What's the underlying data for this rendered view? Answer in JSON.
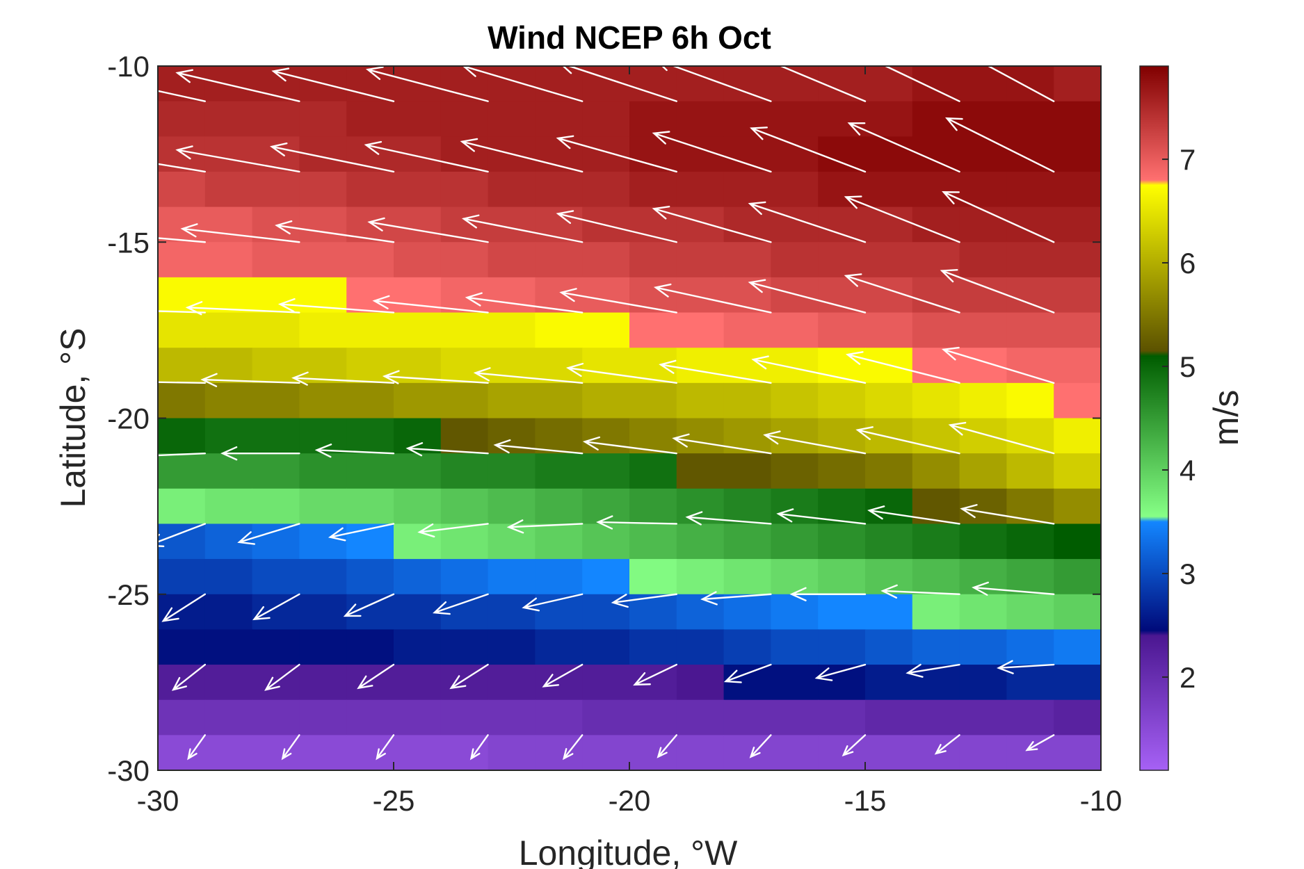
{
  "chart_data": {
    "type": "heatmap",
    "subtype": "wind speed field with wind vectors",
    "title": "Wind NCEP 6h Oct",
    "xlabel": "Longitude, °W",
    "ylabel": "Latitude, °S",
    "xlim": [
      -30,
      -10
    ],
    "ylim": [
      -30,
      -10
    ],
    "xticks": [
      "-30",
      "-25",
      "-20",
      "-15",
      "-10"
    ],
    "yticks": [
      "-10",
      "-15",
      "-20",
      "-25",
      "-30"
    ],
    "grid": false,
    "colorbar": {
      "label": "m/s",
      "range": [
        1.1,
        7.9
      ],
      "ticks": [
        "2",
        "3",
        "4",
        "5",
        "6",
        "7"
      ],
      "tick_values": [
        2,
        3,
        4,
        5,
        6,
        7
      ],
      "stops": [
        {
          "v": 1.1,
          "c": "#a661f5"
        },
        {
          "v": 2.4,
          "c": "#4b1791"
        },
        {
          "v": 2.45,
          "c": "#000a7a"
        },
        {
          "v": 3.5,
          "c": "#1386ff"
        },
        {
          "v": 3.55,
          "c": "#86ff86"
        },
        {
          "v": 5.1,
          "c": "#005c00"
        },
        {
          "v": 5.15,
          "c": "#5c5200"
        },
        {
          "v": 6.75,
          "c": "#ffff00"
        },
        {
          "v": 6.8,
          "c": "#ff7070"
        },
        {
          "v": 7.9,
          "c": "#800000"
        }
      ]
    },
    "grid_info": {
      "lon_start": -30,
      "lon_step": 1,
      "lat_start": -10,
      "lat_step": -1,
      "n_lon": 20,
      "n_lat": 20
    },
    "speed": [
      [
        7.6,
        7.6,
        7.6,
        7.6,
        7.6,
        7.6,
        7.6,
        7.6,
        7.6,
        7.6,
        7.6,
        7.6,
        7.6,
        7.6,
        7.6,
        7.6,
        7.7,
        7.7,
        7.7,
        7.6
      ],
      [
        7.5,
        7.5,
        7.5,
        7.5,
        7.6,
        7.6,
        7.6,
        7.6,
        7.6,
        7.6,
        7.7,
        7.7,
        7.7,
        7.7,
        7.7,
        7.7,
        7.8,
        7.8,
        7.8,
        7.8
      ],
      [
        7.4,
        7.4,
        7.4,
        7.5,
        7.5,
        7.5,
        7.6,
        7.6,
        7.6,
        7.6,
        7.7,
        7.7,
        7.7,
        7.7,
        7.8,
        7.8,
        7.8,
        7.8,
        7.8,
        7.8
      ],
      [
        7.2,
        7.3,
        7.3,
        7.3,
        7.4,
        7.4,
        7.4,
        7.5,
        7.5,
        7.5,
        7.6,
        7.6,
        7.6,
        7.6,
        7.7,
        7.7,
        7.7,
        7.7,
        7.7,
        7.7
      ],
      [
        7.0,
        7.0,
        7.1,
        7.1,
        7.2,
        7.2,
        7.3,
        7.3,
        7.3,
        7.4,
        7.4,
        7.4,
        7.5,
        7.5,
        7.5,
        7.5,
        7.6,
        7.6,
        7.6,
        7.6
      ],
      [
        6.9,
        6.9,
        7.0,
        7.0,
        7.0,
        7.1,
        7.1,
        7.2,
        7.2,
        7.2,
        7.3,
        7.3,
        7.3,
        7.4,
        7.4,
        7.4,
        7.4,
        7.5,
        7.5,
        7.5
      ],
      [
        6.7,
        6.7,
        6.7,
        6.7,
        6.8,
        6.8,
        6.9,
        6.9,
        7.0,
        7.0,
        7.1,
        7.1,
        7.1,
        7.2,
        7.2,
        7.2,
        7.3,
        7.3,
        7.3,
        7.3
      ],
      [
        6.5,
        6.5,
        6.5,
        6.6,
        6.6,
        6.6,
        6.6,
        6.6,
        6.7,
        6.7,
        6.8,
        6.8,
        6.9,
        6.9,
        7.0,
        7.0,
        7.1,
        7.1,
        7.1,
        7.1
      ],
      [
        6.1,
        6.1,
        6.2,
        6.2,
        6.3,
        6.3,
        6.4,
        6.4,
        6.4,
        6.5,
        6.5,
        6.6,
        6.6,
        6.6,
        6.7,
        6.7,
        6.8,
        6.8,
        6.9,
        6.9
      ],
      [
        5.5,
        5.6,
        5.6,
        5.7,
        5.7,
        5.8,
        5.8,
        5.9,
        5.9,
        6.0,
        6.0,
        6.1,
        6.1,
        6.2,
        6.3,
        6.4,
        6.5,
        6.6,
        6.7,
        6.8
      ],
      [
        5.0,
        4.9,
        4.9,
        4.9,
        4.9,
        5.0,
        5.2,
        5.3,
        5.4,
        5.5,
        5.6,
        5.7,
        5.8,
        5.9,
        6.0,
        6.1,
        6.2,
        6.3,
        6.4,
        6.6
      ],
      [
        4.5,
        4.5,
        4.5,
        4.6,
        4.6,
        4.6,
        4.7,
        4.7,
        4.8,
        4.8,
        4.9,
        5.2,
        5.2,
        5.3,
        5.4,
        5.5,
        5.7,
        5.9,
        6.1,
        6.3
      ],
      [
        3.7,
        3.8,
        3.8,
        3.9,
        3.9,
        4.0,
        4.1,
        4.2,
        4.3,
        4.4,
        4.5,
        4.6,
        4.7,
        4.8,
        4.9,
        5.0,
        5.2,
        5.3,
        5.5,
        5.7
      ],
      [
        3.1,
        3.2,
        3.3,
        3.4,
        3.5,
        3.7,
        3.8,
        3.9,
        4.0,
        4.1,
        4.2,
        4.3,
        4.4,
        4.5,
        4.6,
        4.7,
        4.8,
        4.9,
        5.0,
        5.1
      ],
      [
        2.9,
        2.9,
        3.0,
        3.0,
        3.1,
        3.2,
        3.3,
        3.4,
        3.4,
        3.5,
        3.6,
        3.7,
        3.8,
        3.9,
        4.0,
        4.1,
        4.2,
        4.3,
        4.4,
        4.5
      ],
      [
        2.6,
        2.6,
        2.7,
        2.7,
        2.8,
        2.8,
        2.9,
        2.9,
        3.0,
        3.0,
        3.1,
        3.2,
        3.3,
        3.4,
        3.5,
        3.5,
        3.7,
        3.8,
        3.9,
        4.0
      ],
      [
        2.5,
        2.5,
        2.5,
        2.5,
        2.5,
        2.6,
        2.6,
        2.6,
        2.7,
        2.7,
        2.8,
        2.8,
        2.9,
        3.0,
        3.0,
        3.1,
        3.2,
        3.2,
        3.3,
        3.4
      ],
      [
        2.3,
        2.3,
        2.3,
        2.3,
        2.3,
        2.3,
        2.3,
        2.3,
        2.3,
        2.3,
        2.3,
        2.4,
        2.5,
        2.5,
        2.5,
        2.6,
        2.6,
        2.6,
        2.7,
        2.7
      ],
      [
        1.9,
        1.9,
        1.9,
        1.9,
        1.9,
        1.9,
        1.9,
        1.9,
        1.9,
        2.0,
        2.0,
        2.0,
        2.0,
        2.0,
        2.0,
        2.1,
        2.1,
        2.1,
        2.1,
        2.2
      ],
      [
        1.5,
        1.5,
        1.5,
        1.5,
        1.5,
        1.5,
        1.5,
        1.6,
        1.6,
        1.6,
        1.6,
        1.6,
        1.6,
        1.6,
        1.6,
        1.6,
        1.6,
        1.6,
        1.6,
        1.6
      ]
    ],
    "vectors_lat": [
      -11,
      -13,
      -15,
      -17,
      -19,
      -21,
      -23,
      -25,
      -27,
      -29
    ],
    "vectors_lon": [
      -29,
      -27,
      -25,
      -23,
      -21,
      -19,
      -17,
      -15,
      -13,
      -11
    ],
    "u": [
      [
        -7.3,
        -7.3,
        -7.2,
        -7.2,
        -7.1,
        -7.0,
        -6.9,
        -6.7,
        -6.5,
        -6.3
      ],
      [
        -7.3,
        -7.3,
        -7.3,
        -7.3,
        -7.2,
        -7.1,
        -7.0,
        -6.8,
        -6.6,
        -6.4
      ],
      [
        -7.0,
        -7.0,
        -7.0,
        -7.1,
        -7.1,
        -7.1,
        -7.0,
        -6.9,
        -6.8,
        -6.6
      ],
      [
        -6.7,
        -6.7,
        -6.8,
        -6.8,
        -6.9,
        -6.9,
        -6.9,
        -6.9,
        -6.8,
        -6.7
      ],
      [
        -5.7,
        -5.8,
        -6.0,
        -6.2,
        -6.4,
        -6.5,
        -6.6,
        -6.7,
        -6.7,
        -6.6
      ],
      [
        -4.7,
        -4.6,
        -4.6,
        -4.8,
        -5.2,
        -5.5,
        -5.8,
        -6.0,
        -6.1,
        -6.2
      ],
      [
        -3.4,
        -3.6,
        -3.8,
        -4.1,
        -4.4,
        -4.7,
        -5.0,
        -5.2,
        -5.4,
        -5.5
      ],
      [
        -2.5,
        -2.7,
        -2.9,
        -3.2,
        -3.5,
        -3.8,
        -4.1,
        -4.4,
        -4.6,
        -4.8
      ],
      [
        -1.9,
        -2.0,
        -2.1,
        -2.2,
        -2.3,
        -2.5,
        -2.7,
        -2.9,
        -3.1,
        -3.3
      ],
      [
        -1.0,
        -1.0,
        -1.0,
        -1.0,
        -1.1,
        -1.1,
        -1.2,
        -1.3,
        -1.4,
        -1.6
      ]
    ],
    "v": [
      [
        1.6,
        1.7,
        1.8,
        1.9,
        2.1,
        2.3,
        2.5,
        2.8,
        3.1,
        3.4
      ],
      [
        1.2,
        1.3,
        1.5,
        1.6,
        1.8,
        2.0,
        2.3,
        2.6,
        2.9,
        3.2
      ],
      [
        0.6,
        0.8,
        1.0,
        1.2,
        1.4,
        1.7,
        2.0,
        2.3,
        2.7,
        3.0
      ],
      [
        0.2,
        0.3,
        0.5,
        0.7,
        0.9,
        1.2,
        1.5,
        1.8,
        2.2,
        2.5
      ],
      [
        0.1,
        0.2,
        0.3,
        0.4,
        0.6,
        0.9,
        1.1,
        1.4,
        1.7,
        2.0
      ],
      [
        -0.2,
        0.0,
        0.2,
        0.3,
        0.5,
        0.7,
        0.9,
        1.1,
        1.4,
        1.7
      ],
      [
        -1.3,
        -1.1,
        -0.8,
        -0.5,
        -0.2,
        0.1,
        0.4,
        0.6,
        0.8,
        0.9
      ],
      [
        -1.6,
        -1.5,
        -1.3,
        -1.1,
        -0.8,
        -0.5,
        -0.3,
        0.0,
        0.2,
        0.4
      ],
      [
        -1.5,
        -1.5,
        -1.4,
        -1.4,
        -1.3,
        -1.2,
        -1.0,
        -0.8,
        -0.5,
        -0.2
      ],
      [
        -1.4,
        -1.4,
        -1.4,
        -1.4,
        -1.4,
        -1.3,
        -1.3,
        -1.2,
        -1.1,
        -0.9
      ]
    ],
    "vector_color": "#ffffff"
  }
}
